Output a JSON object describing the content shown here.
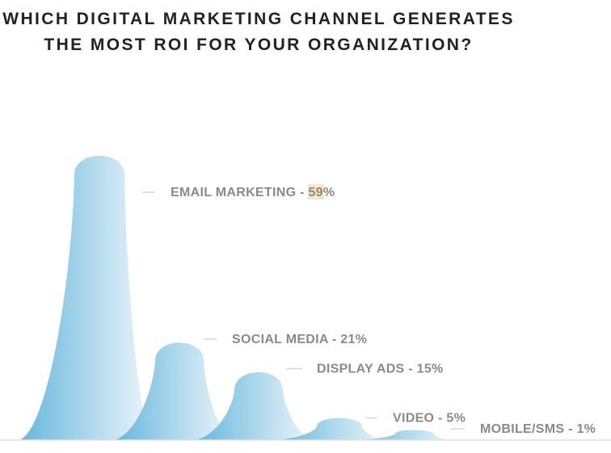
{
  "chart_data": {
    "type": "area",
    "title_lines": [
      "WHICH DIGITAL MARKETING CHANNEL GENERATES",
      "THE MOST ROI FOR YOUR ORGANIZATION?"
    ],
    "categories": [
      "EMAIL MARKETING",
      "SOCIAL MEDIA",
      "DISPLAY ADS",
      "VIDEO",
      "MOBILE/SMS"
    ],
    "values": [
      59,
      21,
      15,
      5,
      1
    ],
    "unit": "%",
    "label_separator": " - ",
    "highlight_category": "EMAIL MARKETING",
    "colors": {
      "peak_dark": "#5fb3da",
      "peak_light": "#eef6fb",
      "label": "#8a8a8a",
      "highlight_bg": "#fbe3c7",
      "title": "#222222"
    }
  }
}
